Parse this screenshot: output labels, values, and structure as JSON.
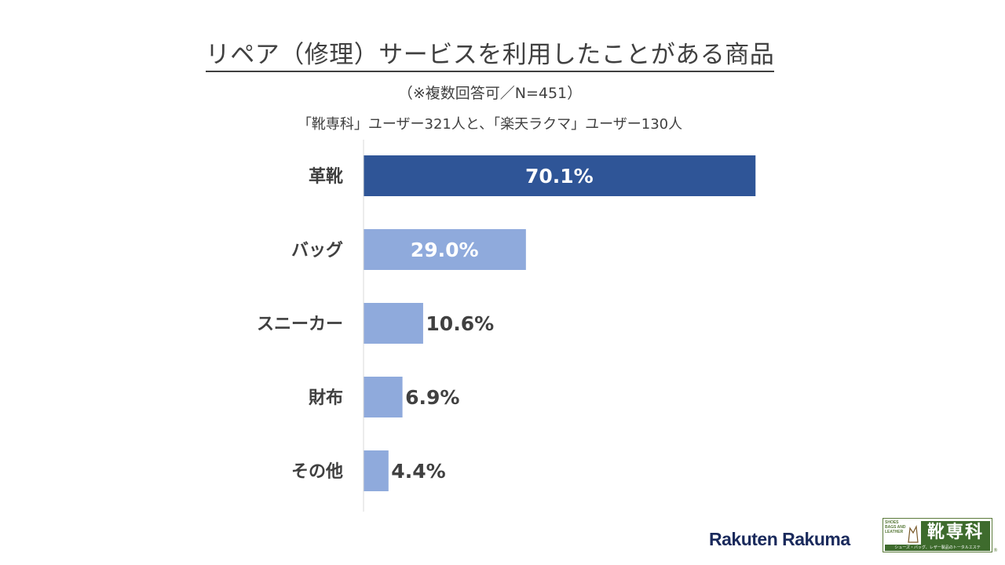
{
  "title": "リペア（修理）サービスを利用したことがある商品",
  "subtitle": "（※複数回答可／N=451）",
  "note": "「靴専科」ユーザー321人と、「楽天ラクマ」ユーザー130人",
  "chart_data": {
    "type": "bar",
    "orientation": "horizontal",
    "title": "リペア（修理）サービスを利用したことがある商品",
    "categories": [
      "革靴",
      "バッグ",
      "スニーカー",
      "財布",
      "その他"
    ],
    "values": [
      70.1,
      29.0,
      10.6,
      6.9,
      4.4
    ],
    "value_labels": [
      "70.1%",
      "29.0%",
      "10.6%",
      "6.9%",
      "4.4%"
    ],
    "xlim": [
      0,
      100
    ],
    "unit": "%",
    "grid": false,
    "colors": {
      "highlight": "#2f5597",
      "default": "#8faadc",
      "label_inside": "#ffffff",
      "label_outside": "#404040",
      "axis": "#d9d9d9"
    },
    "highlight_index": 0
  },
  "logos": {
    "rakuten": "Rakuten Rakuma",
    "shoe_kanji": "靴専科",
    "shoe_mini": "SHOES BAGS AND LEATHER",
    "shoe_tagline": "シューズ・バッグ、レザー製品のトータルエステ",
    "reg_mark": "®"
  }
}
